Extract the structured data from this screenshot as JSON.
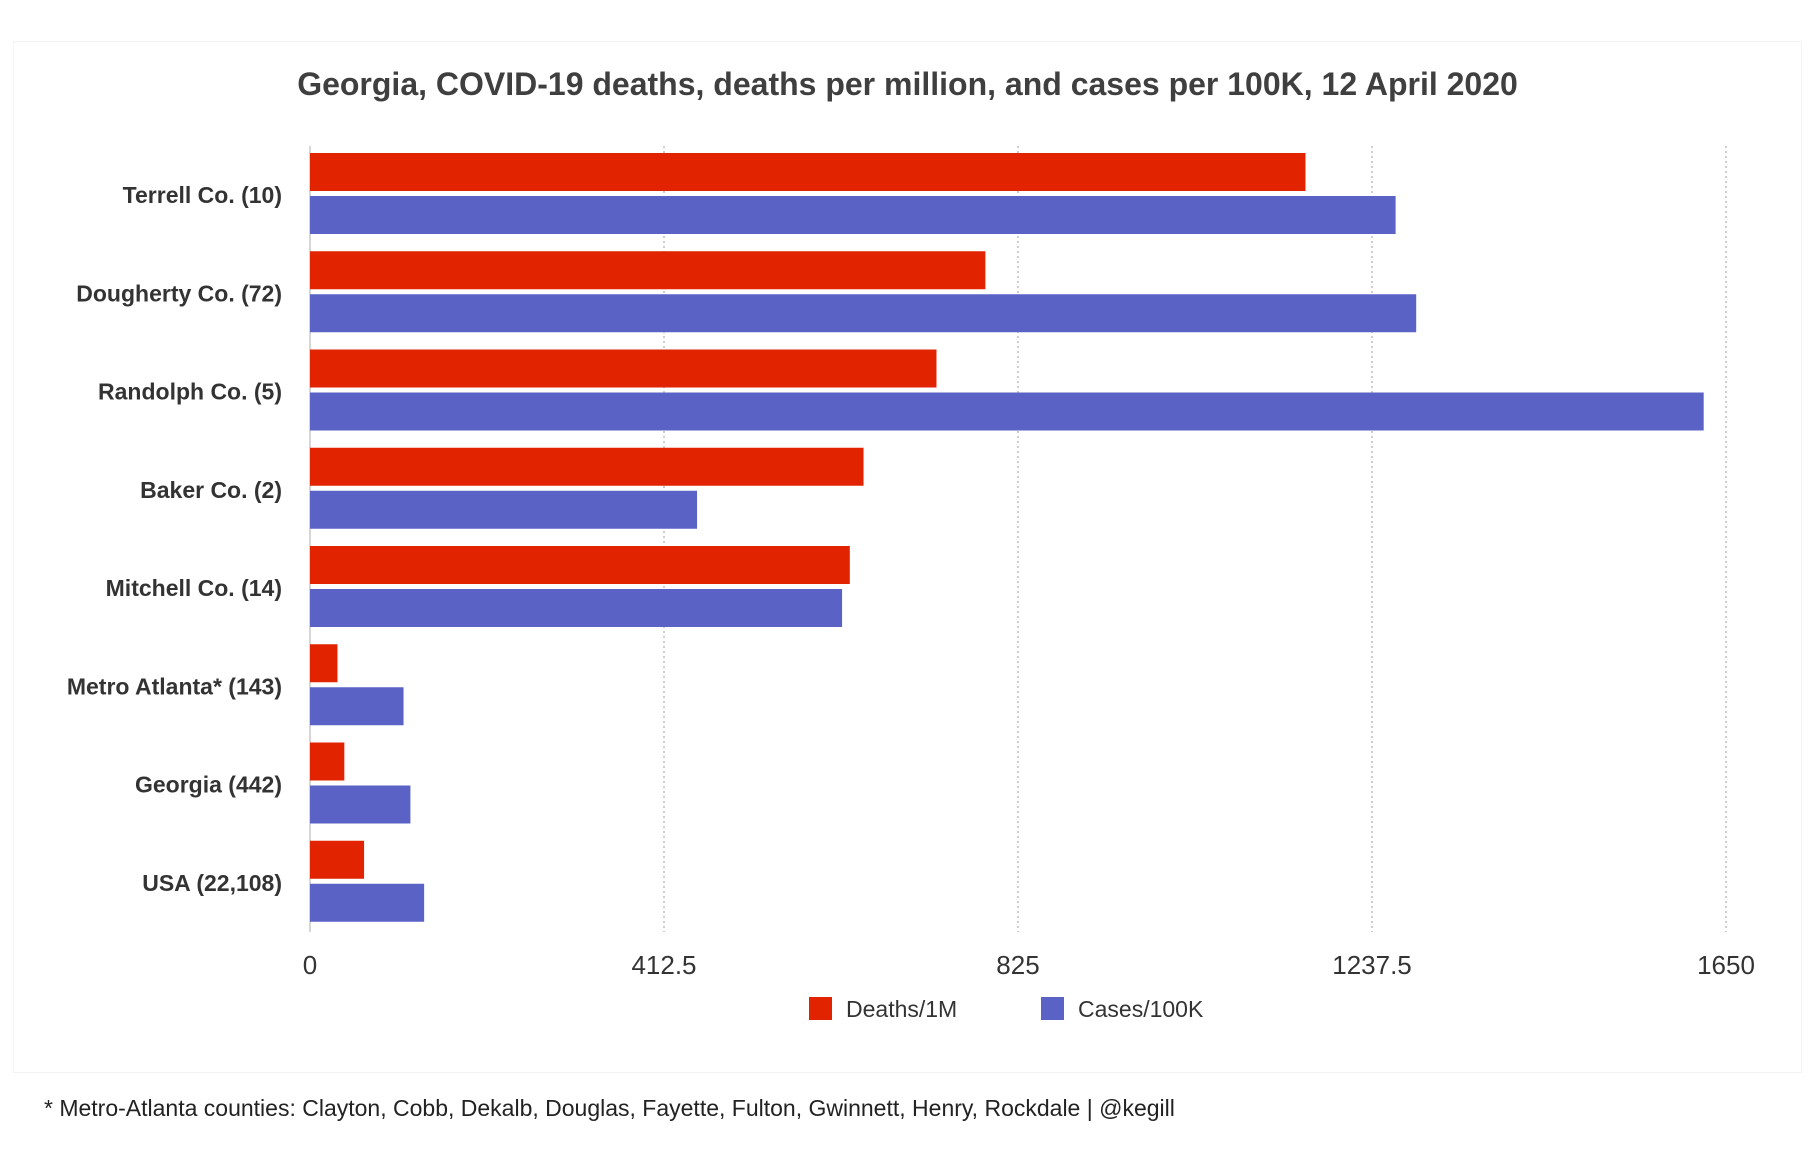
{
  "chart_data": {
    "type": "bar",
    "orientation": "horizontal",
    "title": "Georgia, COVID-19 deaths, deaths per million, and cases per 100K, 12 April 2020",
    "categories": [
      "Terrell Co. (10)",
      "Dougherty Co. (72)",
      "Randolph Co. (5)",
      "Baker Co. (2)",
      "Mitchell Co. (14)",
      "Metro Atlanta* (143)",
      "Georgia (442)",
      "USA (22,108)"
    ],
    "series": [
      {
        "name": "Deaths/1M",
        "color": "#e12300",
        "values": [
          1160,
          787,
          730,
          645,
          629,
          32,
          40,
          63
        ]
      },
      {
        "name": "Cases/100K",
        "color": "#5a62c5",
        "values": [
          1265,
          1289,
          1624,
          451,
          620,
          109,
          117,
          133
        ]
      }
    ],
    "xlim": [
      0,
      1650
    ],
    "xticks": [
      "0",
      "412.5",
      "825",
      "1237.5",
      "1650"
    ],
    "grid": true,
    "legend_position": "bottom-center"
  },
  "footnote": "* Metro-Atlanta counties: Clayton, Cobb, Dekalb, Douglas, Fayette, Fulton, Gwinnett, Henry, Rockdale | @kegill"
}
